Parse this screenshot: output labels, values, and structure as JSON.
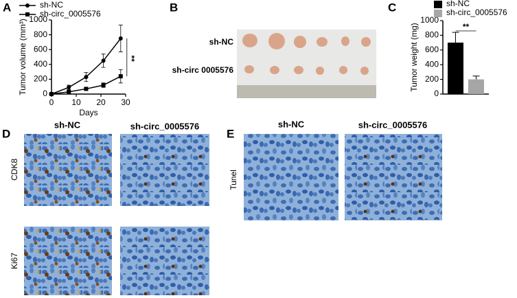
{
  "chart_data": [
    {
      "type": "line",
      "panel": "A",
      "x_label": "Days",
      "y_label": "Tumor volume (mm³)",
      "x": [
        0,
        7,
        14,
        21,
        28
      ],
      "xlim": [
        0,
        30
      ],
      "xticks": [
        0,
        10,
        20,
        30
      ],
      "ylim": [
        0,
        1000
      ],
      "yticks": [
        0,
        200,
        400,
        600,
        800,
        1000
      ],
      "series": [
        {
          "name": "sh-NC",
          "color": "#000000",
          "marker": "circle",
          "values": [
            0,
            90,
            230,
            450,
            750
          ],
          "errors": [
            0,
            30,
            60,
            90,
            180
          ]
        },
        {
          "name": "sh-circ_0005576",
          "color": "#000000",
          "marker": "square",
          "values": [
            0,
            30,
            70,
            120,
            240
          ],
          "errors": [
            0,
            10,
            20,
            30,
            90
          ]
        }
      ],
      "annotation": "**",
      "legend": "top-left"
    },
    {
      "type": "bar",
      "panel": "C",
      "y_label": "Tumor weight (mg)",
      "categories": [
        null
      ],
      "ylim": [
        0,
        1000
      ],
      "yticks": [
        0,
        200,
        400,
        600,
        800,
        1000
      ],
      "series": [
        {
          "name": "sh-NC",
          "color": "#000000",
          "values": [
            700
          ],
          "errors": [
            140
          ]
        },
        {
          "name": "sh-circ_0005576",
          "color": "#a6a6a6",
          "values": [
            200
          ],
          "errors": [
            45
          ]
        }
      ],
      "annotation": "**",
      "legend": "top-right"
    }
  ],
  "photo": {
    "panel": "B",
    "rows": [
      "sh-NC",
      "sh-circ 0005576"
    ]
  },
  "histology": {
    "panel": "D",
    "columns": [
      "sh-NC",
      "sh-circ_0005576"
    ],
    "rows": [
      "CDK8",
      "Ki67"
    ]
  },
  "tunel": {
    "panel": "E",
    "columns": [
      "sh-NC",
      "sh-circ_0005576"
    ],
    "rows": [
      "Tunel"
    ]
  }
}
